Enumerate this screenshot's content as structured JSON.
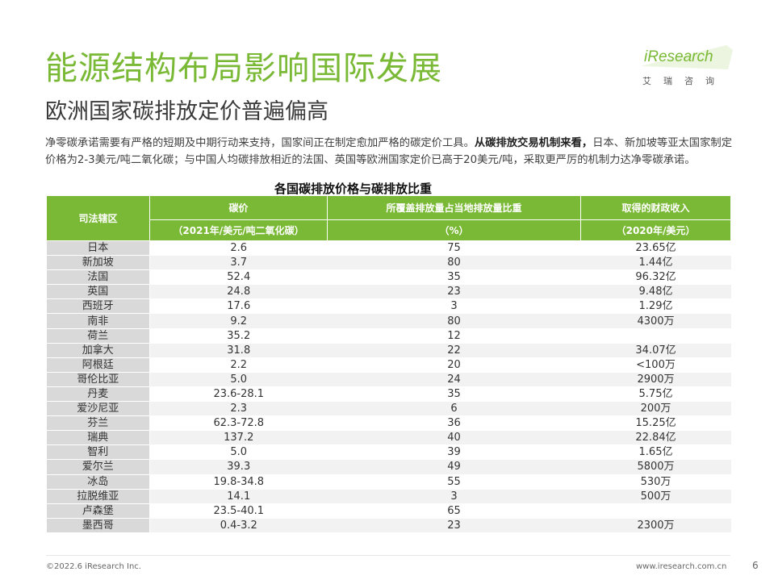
{
  "title": "能源结构布局影响国际发展",
  "subtitle": "欧洲国家碳排放定价普遍偏高",
  "logo": {
    "brand": "iResearch",
    "tagline": "艾瑞咨询"
  },
  "intro": {
    "part1": "净零碳承诺需要有严格的短期及中期行动来支持，国家间正在制定愈加严格的碳定价工具。",
    "bold": "从碳排放交易机制来看，",
    "part2": "日本、新加坡等亚太国家制定价格为2-3美元/吨二氧化碳；与中国人均碳排放相近的法国、英国等欧洲国家定价已高于20美元/吨，采取更严厉的机制力达净零碳承诺。"
  },
  "table": {
    "title": "各国碳排放价格与碳排放比重",
    "headers": {
      "jurisdiction": "司法辖区",
      "price": "碳价",
      "price_unit": "（2021年/美元/吨二氧化碳）",
      "share": "所覆盖排放量占当地排放量比重",
      "share_unit": "（%）",
      "revenue": "取得的财政收入",
      "revenue_unit": "（2020年/美元）"
    },
    "rows": [
      {
        "name": "日本",
        "price": "2.6",
        "share": "75",
        "revenue": "23.65亿"
      },
      {
        "name": "新加坡",
        "price": "3.7",
        "share": "80",
        "revenue": "1.44亿"
      },
      {
        "name": "法国",
        "price": "52.4",
        "share": "35",
        "revenue": "96.32亿"
      },
      {
        "name": "英国",
        "price": "24.8",
        "share": "23",
        "revenue": "9.48亿"
      },
      {
        "name": "西班牙",
        "price": "17.6",
        "share": "3",
        "revenue": "1.29亿"
      },
      {
        "name": "南非",
        "price": "9.2",
        "share": "80",
        "revenue": "4300万"
      },
      {
        "name": "荷兰",
        "price": "35.2",
        "share": "12",
        "revenue": ""
      },
      {
        "name": "加拿大",
        "price": "31.8",
        "share": "22",
        "revenue": "34.07亿"
      },
      {
        "name": "阿根廷",
        "price": "2.2",
        "share": "20",
        "revenue": "<100万"
      },
      {
        "name": "哥伦比亚",
        "price": "5.0",
        "share": "24",
        "revenue": "2900万"
      },
      {
        "name": "丹麦",
        "price": "23.6-28.1",
        "share": "35",
        "revenue": "5.75亿"
      },
      {
        "name": "爱沙尼亚",
        "price": "2.3",
        "share": "6",
        "revenue": "200万"
      },
      {
        "name": "芬兰",
        "price": "62.3-72.8",
        "share": "36",
        "revenue": "15.25亿"
      },
      {
        "name": "瑞典",
        "price": "137.2",
        "share": "40",
        "revenue": "22.84亿"
      },
      {
        "name": "智利",
        "price": "5.0",
        "share": "39",
        "revenue": "1.65亿"
      },
      {
        "name": "爱尔兰",
        "price": "39.3",
        "share": "49",
        "revenue": "5800万"
      },
      {
        "name": "冰岛",
        "price": "19.8-34.8",
        "share": "55",
        "revenue": "530万"
      },
      {
        "name": "拉脱维亚",
        "price": "14.1",
        "share": "3",
        "revenue": "500万"
      },
      {
        "name": "卢森堡",
        "price": "23.5-40.1",
        "share": "65",
        "revenue": ""
      },
      {
        "name": "墨西哥",
        "price": "0.4-3.2",
        "share": "23",
        "revenue": "2300万"
      }
    ]
  },
  "footer": {
    "copyright": "©2022.6 iResearch Inc.",
    "website": "www.iresearch.com.cn",
    "page": "6"
  },
  "colors": {
    "accent": "#7ab935",
    "name_cell": "#d9d9d9",
    "zebra": "#f2f2f2"
  }
}
